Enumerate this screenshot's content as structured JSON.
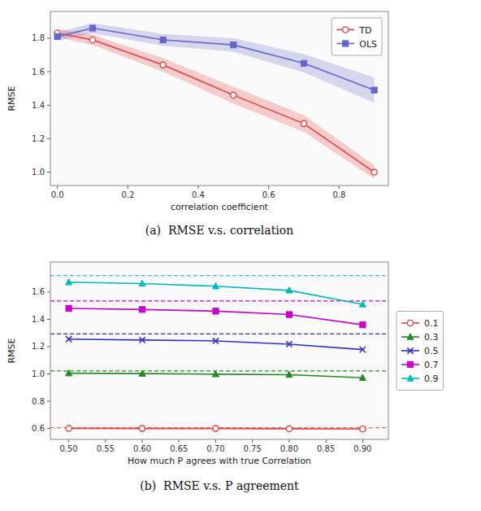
{
  "chart_data": [
    {
      "type": "line",
      "title": "(a)  RMSE v.s. correlation",
      "xlabel": "correlation coefficient",
      "ylabel": "RMSE",
      "x": [
        0.0,
        0.1,
        0.3,
        0.5,
        0.7,
        0.9
      ],
      "series": [
        {
          "name": "TD",
          "color": "#e84040",
          "marker": "circle",
          "values": [
            1.83,
            1.79,
            1.64,
            1.46,
            1.29,
            1.0
          ],
          "std": [
            0.025,
            0.03,
            0.04,
            0.05,
            0.05,
            0.04
          ]
        },
        {
          "name": "OLS",
          "color": "#6666cc",
          "marker": "square",
          "values": [
            1.81,
            1.86,
            1.79,
            1.76,
            1.65,
            1.49
          ],
          "std": [
            0.025,
            0.03,
            0.035,
            0.04,
            0.055,
            0.075
          ]
        }
      ],
      "xlim": [
        -0.02,
        0.94
      ],
      "ylim": [
        0.92,
        1.96
      ],
      "xticks": [
        {
          "value": 0.0,
          "label": "0.0"
        },
        0.2,
        0.4,
        0.6,
        0.8
      ],
      "yticks": [
        {
          "value": 1.0,
          "label": "1.0"
        },
        1.2,
        1.4,
        1.6,
        1.8
      ],
      "grid": false,
      "legend": "upper right"
    },
    {
      "type": "line",
      "title": "(b)  RMSE v.s. P agreement",
      "xlabel": "How much P agrees with true Correlation",
      "ylabel": "RMSE",
      "x": [
        0.5,
        0.6,
        0.7,
        0.8,
        0.9
      ],
      "series": [
        {
          "name": "0.1",
          "color": "#e84040",
          "marker": "circle",
          "values": [
            0.601,
            0.6,
            0.6,
            0.598,
            0.596
          ],
          "hline": 0.605
        },
        {
          "name": "0.3",
          "color": "#228B22",
          "marker": "triangle",
          "values": [
            1.005,
            1.002,
            0.998,
            0.994,
            0.972
          ],
          "hline": 1.022
        },
        {
          "name": "0.5",
          "color": "#3030cc",
          "marker": "x",
          "values": [
            1.255,
            1.248,
            1.242,
            1.218,
            1.178
          ],
          "hline": 1.293
        },
        {
          "name": "0.7",
          "color": "#cc00cc",
          "marker": "square",
          "values": [
            1.48,
            1.472,
            1.46,
            1.435,
            1.36
          ],
          "hline": 1.535
        },
        {
          "name": "0.9",
          "color": "#00bbbb",
          "marker": "triangle",
          "values": [
            1.672,
            1.662,
            1.643,
            1.612,
            1.51
          ],
          "hline": 1.72
        }
      ],
      "xlim": [
        0.475,
        0.935
      ],
      "ylim": [
        0.52,
        1.82
      ],
      "xticks": [
        {
          "value": 0.5,
          "label": "0.50"
        },
        0.55,
        {
          "value": 0.6,
          "label": "0.60"
        },
        0.65,
        {
          "value": 0.7,
          "label": "0.70"
        },
        0.75,
        {
          "value": 0.8,
          "label": "0.80"
        },
        0.85,
        {
          "value": 0.9,
          "label": "0.90"
        }
      ],
      "yticks": [
        0.6,
        0.8,
        {
          "value": 1.0,
          "label": "1.0"
        },
        1.2,
        1.4,
        1.6
      ],
      "grid": false,
      "legend": "right"
    }
  ]
}
